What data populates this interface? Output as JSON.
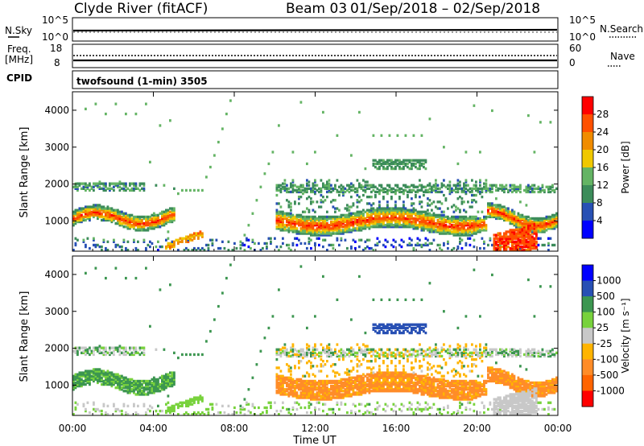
{
  "header": {
    "site": "Clyde River (fitACF)",
    "beam": "Beam 03",
    "date_range": "01/Sep/2018 – 02/Sep/2018"
  },
  "panels": {
    "nsky": {
      "label": "N.Sky",
      "tick_top": "10^5",
      "tick_bottom": "10^0",
      "right_label": "N.Search",
      "right_tick_top": "10^5",
      "right_tick_bottom": "10^0"
    },
    "freq": {
      "label_line1": "Freq.",
      "label_line2": "[MHz]",
      "tick_top": "18",
      "tick_bottom": "8",
      "right_label": "Nave",
      "right_tick_top": "60",
      "right_tick_bottom": "0"
    },
    "cpid": {
      "label": "CPID",
      "value": "twofsound (1-min) 3505"
    }
  },
  "colors": {
    "power": [
      "#0000ff",
      "#2850b4",
      "#3c8c5a",
      "#64b464",
      "#f0c800",
      "#f08c00",
      "#ff5000",
      "#ff0000"
    ],
    "velocity": [
      "#ff0000",
      "#ff6400",
      "#ff8c28",
      "#ffb400",
      "#c8c8c8",
      "#78d23c",
      "#3c9650",
      "#2850b4",
      "#0000ff"
    ]
  },
  "chart_data": [
    {
      "type": "heatmap",
      "name": "power",
      "ylabel": "Slant Range [km]",
      "xlabel": "Time UT",
      "x_ticks": [
        "00:00",
        "04:00",
        "08:00",
        "12:00",
        "16:00",
        "20:00",
        "00:00"
      ],
      "xlim": [
        0,
        24
      ],
      "y_ticks": [
        "1000",
        "2000",
        "3000",
        "4000"
      ],
      "ylim": [
        180,
        4500
      ],
      "colorbar_label": "Power [dB]",
      "colorbar_ticks": [
        "4",
        "8",
        "12",
        "16",
        "20",
        "24",
        "28"
      ],
      "colorbar_range": [
        0,
        32
      ]
    },
    {
      "type": "heatmap",
      "name": "velocity",
      "ylabel": "Slant Range [km]",
      "xlabel": "Time UT",
      "x_ticks": [
        "00:00",
        "04:00",
        "08:00",
        "12:00",
        "16:00",
        "20:00",
        "00:00"
      ],
      "xlim": [
        0,
        24
      ],
      "y_ticks": [
        "1000",
        "2000",
        "3000",
        "4000"
      ],
      "ylim": [
        180,
        4500
      ],
      "colorbar_label": "Velocity [m s⁻¹]",
      "colorbar_ticks": [
        "1000",
        "500",
        "100",
        "25",
        "-25",
        "-100",
        "-500",
        "-1000"
      ]
    }
  ]
}
